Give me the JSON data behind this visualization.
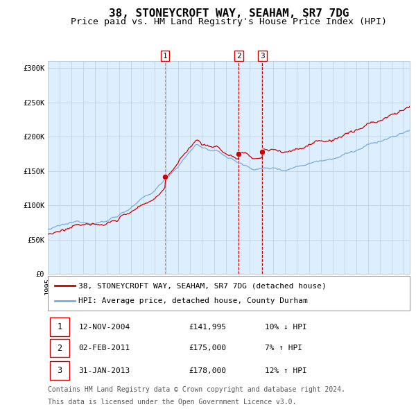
{
  "title": "38, STONEYCROFT WAY, SEAHAM, SR7 7DG",
  "subtitle": "Price paid vs. HM Land Registry's House Price Index (HPI)",
  "red_line_label": "38, STONEYCROFT WAY, SEAHAM, SR7 7DG (detached house)",
  "blue_line_label": "HPI: Average price, detached house, County Durham",
  "footer_line1": "Contains HM Land Registry data © Crown copyright and database right 2024.",
  "footer_line2": "This data is licensed under the Open Government Licence v3.0.",
  "purchases": [
    {
      "num": 1,
      "date": "12-NOV-2004",
      "price": 141995,
      "change": "10%",
      "dir": "↓",
      "x_year": 2004.87
    },
    {
      "num": 2,
      "date": "02-FEB-2011",
      "price": 175000,
      "change": "7%",
      "dir": "↑",
      "x_year": 2011.09
    },
    {
      "num": 3,
      "date": "31-JAN-2013",
      "price": 178000,
      "change": "12%",
      "dir": "↑",
      "x_year": 2013.08
    }
  ],
  "ylim": [
    0,
    310000
  ],
  "xlim_start": 1995.0,
  "xlim_end": 2025.5,
  "red_color": "#cc0000",
  "blue_color": "#7aaadd",
  "shaded_color": "#ddeeff",
  "grid_color": "#bbccdd",
  "vline1_color": "#999999",
  "vline23_color": "#cc0000",
  "title_fontsize": 11.5,
  "subtitle_fontsize": 9.5,
  "axis_fontsize": 7.5,
  "legend_fontsize": 8,
  "footer_fontsize": 7
}
